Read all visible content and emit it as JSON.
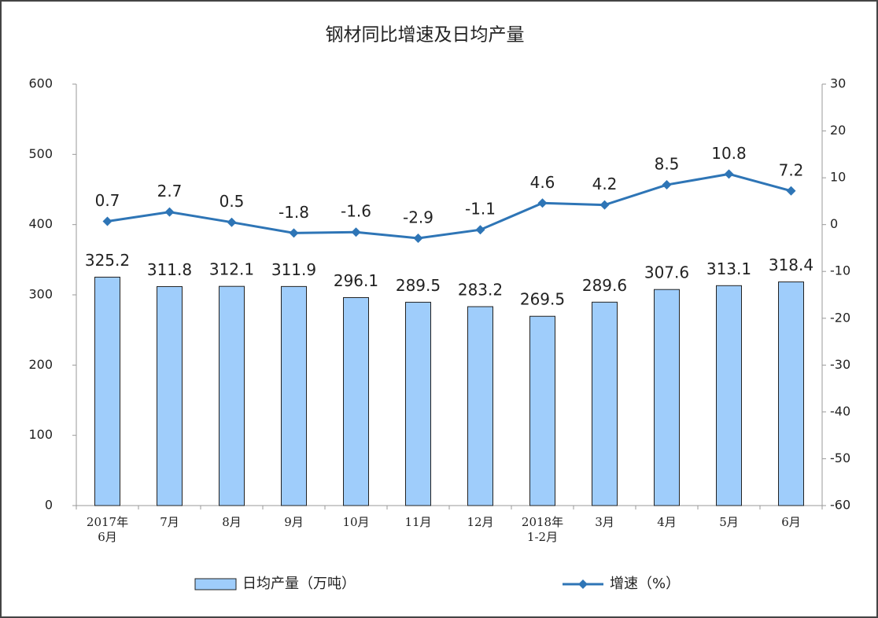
{
  "chart_data": {
    "type": "bar-line",
    "title": "钢材同比增速及日均产量",
    "categories": [
      "2017年\n6月",
      "7月",
      "8月",
      "9月",
      "10月",
      "11月",
      "12月",
      "2018年\n1-2月",
      "3月",
      "4月",
      "5月",
      "6月"
    ],
    "series": [
      {
        "name": "日均产量（万吨）",
        "type": "bar",
        "color": "#9fcdfb",
        "values": [
          325.2,
          311.8,
          312.1,
          311.9,
          296.1,
          289.5,
          283.2,
          269.5,
          289.6,
          307.6,
          313.1,
          318.4
        ]
      },
      {
        "name": "增速（%）",
        "type": "line",
        "axis": "y2",
        "color": "#2e75b6",
        "values": [
          0.7,
          2.7,
          0.5,
          -1.8,
          -1.6,
          -2.9,
          -1.1,
          4.6,
          4.2,
          8.5,
          10.8,
          7.2
        ]
      }
    ],
    "ylim": [
      0,
      600
    ],
    "yticks": [
      0,
      100,
      200,
      300,
      400,
      500,
      600
    ],
    "y2lim": [
      -60,
      30
    ],
    "y2ticks": [
      -60,
      -50,
      -40,
      -30,
      -20,
      -10,
      0,
      10,
      20,
      30
    ]
  }
}
